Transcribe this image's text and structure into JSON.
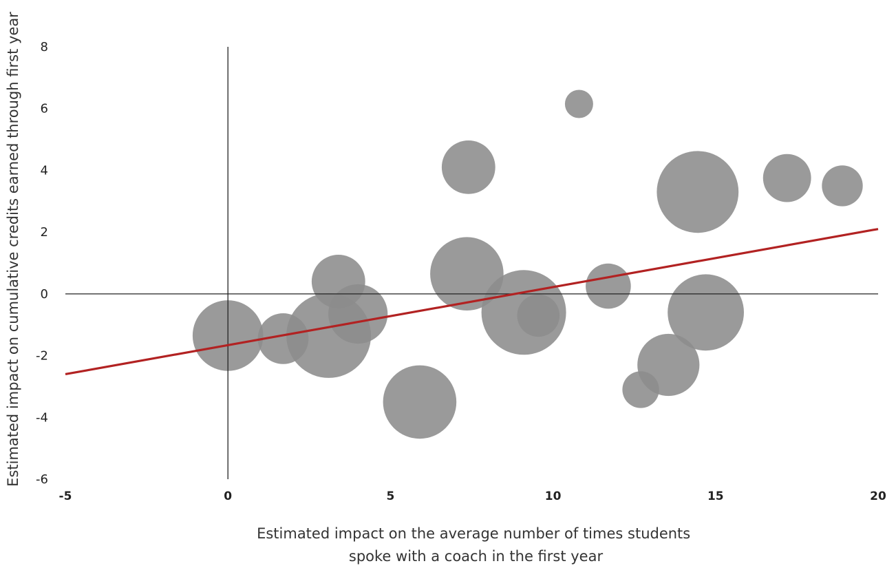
{
  "chart_data": {
    "type": "scatter",
    "title": "",
    "xlabel_lines": [
      "Estimated impact on the average number of times students",
      "spoke with a coach in the first year"
    ],
    "ylabel": "Estimated impact on cumulative credits earned through first year",
    "xlim": [
      -5,
      20
    ],
    "ylim": [
      -6,
      8
    ],
    "x_ticks": [
      -5,
      0,
      5,
      10,
      15,
      20
    ],
    "x_tick_labels": [
      "-5",
      "0",
      "5",
      "10",
      "15",
      "20"
    ],
    "y_ticks": [
      -6,
      -4,
      -2,
      0,
      2,
      4,
      6,
      8
    ],
    "y_tick_labels": [
      "-6",
      "-4",
      "-2",
      "0",
      "2",
      "4",
      "6",
      "8"
    ],
    "grid": false,
    "bubble_color": "#8c8c8c",
    "trend_color": "#b22222",
    "points": [
      {
        "x": 0.0,
        "y": -1.35,
        "size": 2.5
      },
      {
        "x": 1.7,
        "y": -1.45,
        "size": 1.8
      },
      {
        "x": 3.1,
        "y": -1.35,
        "size": 3.0
      },
      {
        "x": 3.4,
        "y": 0.4,
        "size": 1.9
      },
      {
        "x": 4.0,
        "y": -0.65,
        "size": 2.1
      },
      {
        "x": 5.9,
        "y": -3.5,
        "size": 2.6
      },
      {
        "x": 7.35,
        "y": 0.65,
        "size": 2.6
      },
      {
        "x": 7.4,
        "y": 4.1,
        "size": 1.9
      },
      {
        "x": 9.1,
        "y": -0.6,
        "size": 3.0
      },
      {
        "x": 9.55,
        "y": -0.7,
        "size": 1.5
      },
      {
        "x": 10.8,
        "y": 6.15,
        "size": 1.0
      },
      {
        "x": 11.7,
        "y": 0.25,
        "size": 1.6
      },
      {
        "x": 12.7,
        "y": -3.1,
        "size": 1.3
      },
      {
        "x": 13.55,
        "y": -2.3,
        "size": 2.2
      },
      {
        "x": 14.45,
        "y": 3.3,
        "size": 2.9
      },
      {
        "x": 14.7,
        "y": -0.6,
        "size": 2.7
      },
      {
        "x": 17.2,
        "y": 3.75,
        "size": 1.7
      },
      {
        "x": 18.9,
        "y": 3.5,
        "size": 1.45
      }
    ],
    "trendline": {
      "x": [
        -5,
        20
      ],
      "y": [
        -2.6,
        2.1
      ]
    }
  }
}
